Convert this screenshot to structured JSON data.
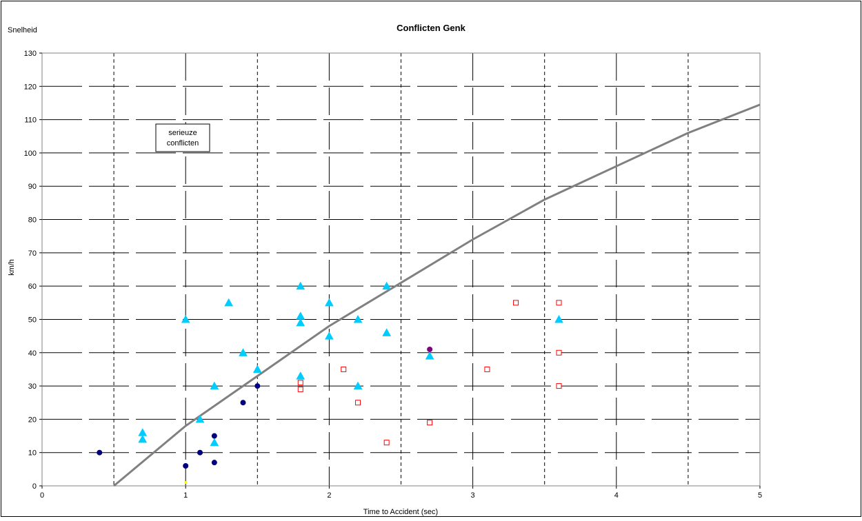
{
  "chart_data": {
    "type": "scatter",
    "title": "Conflicten Genk",
    "ylabel_top": "Snelheid",
    "ylabel": "km/h",
    "xlabel": "Time to Accident (sec)",
    "xlim": [
      0,
      5
    ],
    "ylim": [
      0,
      130
    ],
    "x_ticks": [
      "0",
      "1",
      "2",
      "3",
      "4",
      "5"
    ],
    "x_tick_values": [
      0,
      1,
      2,
      3,
      4,
      5
    ],
    "y_ticks": [
      "0",
      "10",
      "20",
      "30",
      "40",
      "50",
      "60",
      "70",
      "80",
      "90",
      "100",
      "110",
      "120",
      "130"
    ],
    "y_tick_values": [
      0,
      10,
      20,
      30,
      40,
      50,
      60,
      70,
      80,
      90,
      100,
      110,
      120,
      130
    ],
    "grid": true,
    "annotation": {
      "line1": "serieuze",
      "line2": "conflicten",
      "x": 0.95,
      "y": 104
    },
    "colors": {
      "cyan_triangle": "#00CCFF",
      "navy_circle": "#000080",
      "purple_circle": "#800080",
      "red_square": "#FF0000",
      "yellow_marker": "#FFFF00",
      "curve": "#808080",
      "frame": "#000000"
    },
    "series": [
      {
        "marker": "triangle",
        "color": "#00CCFF",
        "points": [
          [
            0.7,
            16
          ],
          [
            0.7,
            14
          ],
          [
            1.0,
            50
          ],
          [
            1.1,
            20
          ],
          [
            1.2,
            30
          ],
          [
            1.2,
            13
          ],
          [
            1.3,
            55
          ],
          [
            1.4,
            40
          ],
          [
            1.5,
            35
          ],
          [
            1.8,
            60
          ],
          [
            1.8,
            51
          ],
          [
            1.8,
            49
          ],
          [
            1.8,
            33
          ],
          [
            2.0,
            55
          ],
          [
            2.0,
            45
          ],
          [
            2.2,
            50
          ],
          [
            2.2,
            30
          ],
          [
            2.4,
            60
          ],
          [
            2.4,
            46
          ],
          [
            2.7,
            39
          ],
          [
            3.6,
            50
          ]
        ]
      },
      {
        "marker": "circle",
        "color": "#000080",
        "points": [
          [
            0.4,
            10
          ],
          [
            1.0,
            6
          ],
          [
            1.1,
            10
          ],
          [
            1.2,
            15
          ],
          [
            1.2,
            7
          ],
          [
            1.4,
            25
          ],
          [
            1.5,
            30
          ]
        ]
      },
      {
        "marker": "circle",
        "color": "#800080",
        "points": [
          [
            2.7,
            41
          ]
        ]
      },
      {
        "marker": "square-open",
        "color": "#FF0000",
        "points": [
          [
            1.8,
            31
          ],
          [
            1.8,
            29
          ],
          [
            2.1,
            35
          ],
          [
            2.2,
            25
          ],
          [
            2.4,
            13
          ],
          [
            2.7,
            19
          ],
          [
            3.1,
            35
          ],
          [
            3.3,
            55
          ],
          [
            3.6,
            55
          ],
          [
            3.6,
            40
          ],
          [
            3.6,
            30
          ]
        ]
      },
      {
        "marker": "circle-small",
        "color": "#FFFF00",
        "points": [
          [
            1.0,
            1
          ]
        ]
      }
    ],
    "curve": {
      "color": "#808080",
      "points": [
        [
          0.5,
          0
        ],
        [
          1.0,
          18
        ],
        [
          1.5,
          33
        ],
        [
          2.0,
          48
        ],
        [
          2.5,
          61
        ],
        [
          3.0,
          74
        ],
        [
          3.5,
          86
        ],
        [
          4.0,
          96
        ],
        [
          4.5,
          106
        ],
        [
          5.0,
          114.5
        ]
      ]
    }
  }
}
